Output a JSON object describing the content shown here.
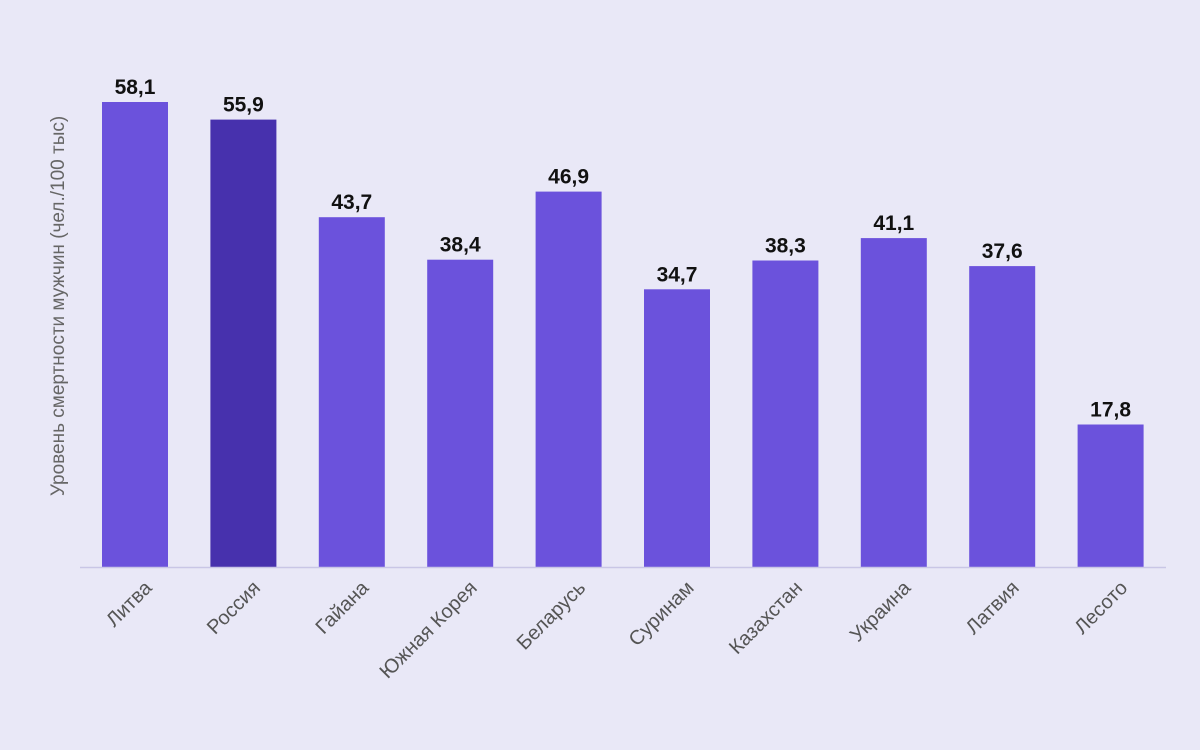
{
  "chart_data": {
    "type": "bar",
    "title": "",
    "xlabel": "",
    "ylabel": "Уровень смертности мужчин (чел./100 тыс)",
    "categories": [
      "Литва",
      "Россия",
      "Гайана",
      "Южная Корея",
      "Беларусь",
      "Суринам",
      "Казахстан",
      "Украина",
      "Латвия",
      "Лесото"
    ],
    "values": [
      58.1,
      55.9,
      43.7,
      38.4,
      46.9,
      34.7,
      38.3,
      41.1,
      37.6,
      17.8
    ],
    "value_labels": [
      "58,1",
      "55,9",
      "43,7",
      "38,4",
      "46,9",
      "34,7",
      "38,3",
      "41,1",
      "37,6",
      "17,8"
    ],
    "highlighted_category": "Россия",
    "ylim": [
      0,
      60
    ],
    "grid": false
  },
  "colors": {
    "background": "#e9e8f7",
    "bar": "#6b52dc",
    "bar_highlight": "#4731ad",
    "axis_line": "#c9c6e6",
    "value_text": "#111111",
    "category_text": "#555555",
    "ylabel_text": "#666666"
  }
}
